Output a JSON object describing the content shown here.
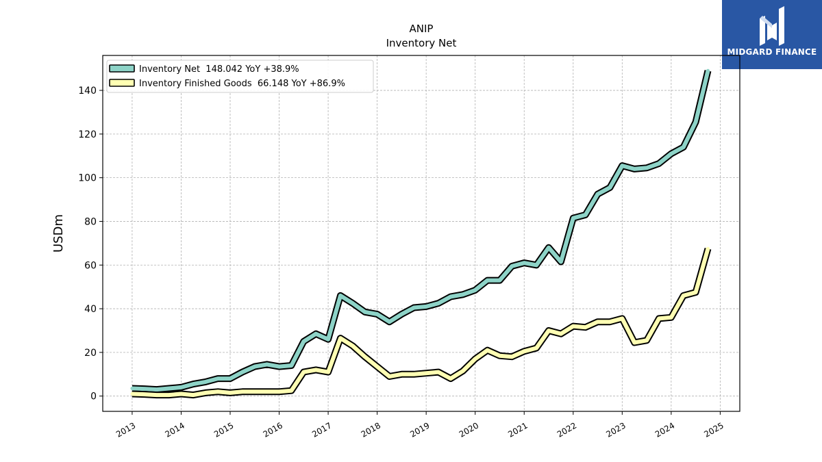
{
  "brand": {
    "name": "MIDGARD FINANCE",
    "bg_color": "#2957a4"
  },
  "chart_data": {
    "type": "line",
    "title": "ANIP",
    "subtitle": "Inventory Net",
    "xlabel": "",
    "ylabel": "USDm",
    "xlim": [
      2012.4,
      2025.4
    ],
    "ylim": [
      -7,
      156
    ],
    "x_ticks": [
      "2013",
      "2014",
      "2015",
      "2016",
      "2017",
      "2018",
      "2019",
      "2020",
      "2021",
      "2022",
      "2023",
      "2024",
      "2025"
    ],
    "y_ticks": [
      "0",
      "20",
      "40",
      "60",
      "80",
      "100",
      "120",
      "140"
    ],
    "grid": true,
    "legend_position": "top-left",
    "series": [
      {
        "name": "Inventory Net  148.042 YoY +38.9%",
        "color": "#8dd3c7",
        "x": [
          2013.0,
          2013.25,
          2013.5,
          2013.75,
          2014.0,
          2014.25,
          2014.5,
          2014.75,
          2015.0,
          2015.25,
          2015.5,
          2015.75,
          2016.0,
          2016.25,
          2016.5,
          2016.75,
          2017.0,
          2017.25,
          2017.5,
          2017.75,
          2018.0,
          2018.25,
          2018.5,
          2018.75,
          2019.0,
          2019.25,
          2019.5,
          2019.75,
          2020.0,
          2020.25,
          2020.5,
          2020.75,
          2021.0,
          2021.25,
          2021.5,
          2021.75,
          2022.0,
          2022.25,
          2022.5,
          2022.75,
          2023.0,
          2023.25,
          2023.5,
          2023.75,
          2024.0,
          2024.25,
          2024.5,
          2024.75
        ],
        "y": [
          3.5,
          3.3,
          3.0,
          3.5,
          4.0,
          5.5,
          6.5,
          8.0,
          8.0,
          11.0,
          13.5,
          14.5,
          13.5,
          14.0,
          25.0,
          28.5,
          26.0,
          46.0,
          42.5,
          38.5,
          37.5,
          34.0,
          37.5,
          40.5,
          41.0,
          42.5,
          45.5,
          46.5,
          48.5,
          53.0,
          53.0,
          59.5,
          61.0,
          60.0,
          68.0,
          61.5,
          81.5,
          83.0,
          92.5,
          95.5,
          105.5,
          104.0,
          104.5,
          106.5,
          111.0,
          114.0,
          125.5,
          149.0
        ]
      },
      {
        "name": "Inventory Finished Goods  66.148 YoY +86.9%",
        "color": "#ffffb3",
        "x": [
          2013.0,
          2013.25,
          2013.5,
          2013.75,
          2014.0,
          2014.25,
          2014.5,
          2014.75,
          2015.0,
          2015.25,
          2015.5,
          2015.75,
          2016.0,
          2016.25,
          2016.5,
          2016.75,
          2017.0,
          2017.25,
          2017.5,
          2017.75,
          2018.0,
          2018.25,
          2018.5,
          2018.75,
          2019.0,
          2019.25,
          2019.5,
          2019.75,
          2020.0,
          2020.25,
          2020.5,
          2020.75,
          2021.0,
          2021.25,
          2021.5,
          2021.75,
          2022.0,
          2022.25,
          2022.5,
          2022.75,
          2023.0,
          2023.25,
          2023.5,
          2023.75,
          2024.0,
          2024.25,
          2024.5,
          2024.75
        ],
        "y": [
          1.0,
          0.8,
          0.5,
          0.5,
          1.0,
          0.5,
          1.5,
          2.0,
          1.5,
          2.0,
          2.0,
          2.0,
          2.0,
          2.5,
          11.0,
          12.0,
          11.0,
          26.5,
          23.0,
          18.0,
          13.5,
          9.0,
          10.0,
          10.0,
          10.5,
          11.0,
          8.0,
          11.5,
          17.0,
          21.0,
          18.5,
          18.0,
          20.5,
          22.0,
          30.0,
          28.5,
          32.0,
          31.5,
          34.0,
          34.0,
          35.5,
          24.5,
          25.5,
          35.5,
          36.0,
          46.0,
          47.5,
          67.5
        ]
      }
    ]
  }
}
